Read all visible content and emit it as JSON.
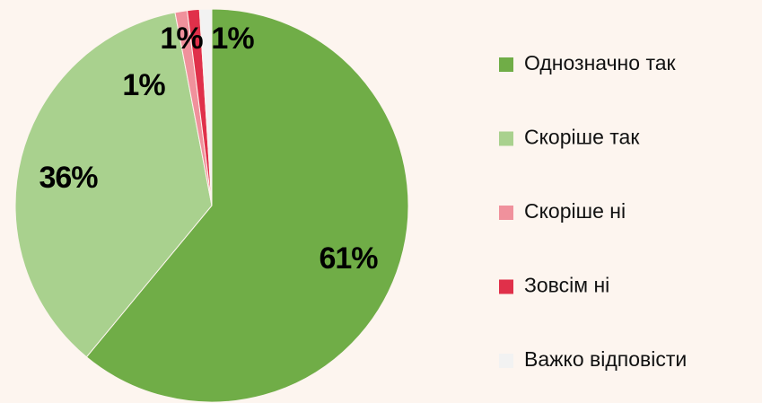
{
  "chart_data": {
    "type": "pie",
    "categories": [
      "Однозначно так",
      "Скоріше так",
      "Скоріше ні",
      "Зовсім ні",
      "Важко відповісти"
    ],
    "values": [
      61,
      36,
      1,
      1,
      1
    ],
    "value_labels": [
      "61%",
      "36%",
      "1%",
      "1%",
      "1%"
    ],
    "colors": [
      "#70ad47",
      "#a9d18e",
      "#f0919c",
      "#e0304a",
      "#f2f2f2"
    ],
    "legend": "right"
  }
}
